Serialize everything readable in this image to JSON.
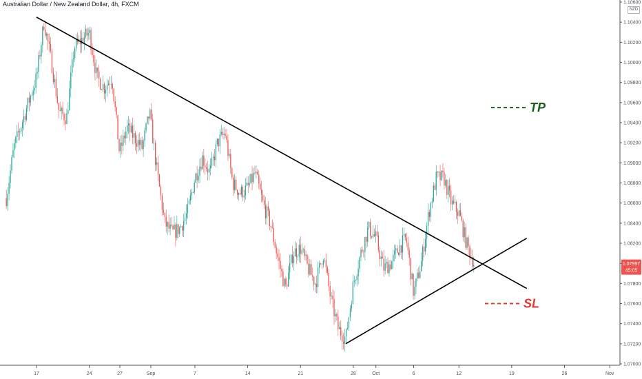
{
  "header": {
    "symbol_title": "Australian Dollar / New Zealand Dollar, 4h, FXCM"
  },
  "price_scale": {
    "currency": "NZD"
  },
  "price_tag": {
    "price": "1.07997",
    "countdown": "45:05",
    "color": "#ef5350"
  },
  "colors": {
    "up": "#26a69a",
    "down": "#ef5350",
    "tp": "#1b5e20",
    "sl": "#e53935",
    "line": "#000000"
  },
  "chart_data": {
    "type": "candlestick",
    "title": "Australian Dollar / New Zealand Dollar, 4h, FXCM",
    "ylim": [
      1.07,
      1.106
    ],
    "y_ticks": [
      "1.07000",
      "1.07200",
      "1.07400",
      "1.07600",
      "1.07800",
      "1.08000",
      "1.08200",
      "1.08400",
      "1.08600",
      "1.08800",
      "1.09000",
      "1.09200",
      "1.09400",
      "1.09600",
      "1.09800",
      "1.10000",
      "1.10200",
      "1.10400",
      "1.10600"
    ],
    "x_ticks": [
      "17",
      "24",
      "Sep",
      "27",
      "7",
      "14",
      "21",
      "28",
      "Oct",
      "6",
      "12",
      "19",
      "26",
      "Nov"
    ],
    "price_path": [
      [
        "2020-08-13",
        1.0865
      ],
      [
        "2020-08-14",
        1.0915
      ],
      [
        "2020-08-17",
        1.0985
      ],
      [
        "2020-08-18",
        1.104
      ],
      [
        "2020-08-19",
        1.1
      ],
      [
        "2020-08-20",
        1.095
      ],
      [
        "2020-08-21",
        1.0945
      ],
      [
        "2020-08-22",
        1.1015
      ],
      [
        "2020-08-24",
        1.103
      ],
      [
        "2020-08-25",
        1.0985
      ],
      [
        "2020-08-26",
        1.0975
      ],
      [
        "2020-08-27",
        1.0985
      ],
      [
        "2020-08-28",
        1.091
      ],
      [
        "2020-08-29",
        1.0935
      ],
      [
        "2020-08-31",
        1.0915
      ],
      [
        "2020-09-01",
        1.095
      ],
      [
        "2020-09-02",
        1.089
      ],
      [
        "2020-09-03",
        1.084
      ],
      [
        "2020-09-04",
        1.083
      ],
      [
        "2020-09-05",
        1.0835
      ],
      [
        "2020-09-06",
        1.085
      ],
      [
        "2020-09-07",
        1.0885
      ],
      [
        "2020-09-08",
        1.0905
      ],
      [
        "2020-09-09",
        1.089
      ],
      [
        "2020-09-10",
        1.092
      ],
      [
        "2020-09-11",
        1.093
      ],
      [
        "2020-09-12",
        1.088
      ],
      [
        "2020-09-13",
        1.087
      ],
      [
        "2020-09-14",
        1.0875
      ],
      [
        "2020-09-15",
        1.089
      ],
      [
        "2020-09-16",
        1.086
      ],
      [
        "2020-09-17",
        1.084
      ],
      [
        "2020-09-18",
        1.0805
      ],
      [
        "2020-09-19",
        1.0775
      ],
      [
        "2020-09-20",
        1.081
      ],
      [
        "2020-09-21",
        1.0815
      ],
      [
        "2020-09-22",
        1.0795
      ],
      [
        "2020-09-23",
        1.078
      ],
      [
        "2020-09-24",
        1.081
      ],
      [
        "2020-09-25",
        1.0765
      ],
      [
        "2020-09-26",
        1.0735
      ],
      [
        "2020-09-27",
        1.0725
      ],
      [
        "2020-09-28",
        1.078
      ],
      [
        "2020-09-29",
        1.081
      ],
      [
        "2020-09-30",
        1.0835
      ],
      [
        "2020-10-01",
        1.0825
      ],
      [
        "2020-10-02",
        1.0795
      ],
      [
        "2020-10-03",
        1.08
      ],
      [
        "2020-10-04",
        1.0815
      ],
      [
        "2020-10-05",
        1.0825
      ],
      [
        "2020-10-06",
        1.077
      ],
      [
        "2020-10-07",
        1.08
      ],
      [
        "2020-10-08",
        1.085
      ],
      [
        "2020-10-09",
        1.0885
      ],
      [
        "2020-10-10",
        1.0885
      ],
      [
        "2020-10-11",
        1.086
      ],
      [
        "2020-10-12",
        1.085
      ],
      [
        "2020-10-13",
        1.082
      ],
      [
        "2020-10-14",
        1.08
      ]
    ],
    "drawings": [
      {
        "kind": "trendline",
        "from": [
          "2020-08-17",
          1.1045
        ],
        "to": [
          "2020-10-21",
          1.0775
        ]
      },
      {
        "kind": "trendline",
        "from": [
          "2020-09-27",
          1.072
        ],
        "to": [
          "2020-10-21",
          1.0825
        ]
      }
    ],
    "annotations": [
      {
        "text": "TP",
        "color": "#1b5e20",
        "price": 1.0955
      },
      {
        "text": "SL",
        "color": "#e53935",
        "price": 1.076
      }
    ]
  }
}
